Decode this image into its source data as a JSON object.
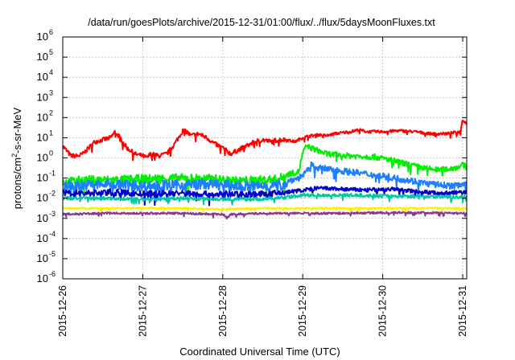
{
  "chart_data": {
    "type": "line",
    "title": "/data/run/goesPlots/archive/2015-12-31/01:00/flux/../flux/5daysMoonFluxes.txt",
    "xlabel": "Coordinated Universal Time (UTC)",
    "ylabel": {
      "base": "protons/cm",
      "sup": "2",
      "rest": "-s-sr-MeV"
    },
    "xlim": [
      0,
      5.05
    ],
    "ylim_log10": [
      -6,
      6
    ],
    "x_ticks": [
      {
        "x": 0,
        "label": "2015-12-26"
      },
      {
        "x": 1,
        "label": "2015-12-27"
      },
      {
        "x": 2,
        "label": "2015-12-28"
      },
      {
        "x": 3,
        "label": "2015-12-29"
      },
      {
        "x": 4,
        "label": "2015-12-30"
      },
      {
        "x": 5,
        "label": "2015-12-31"
      }
    ],
    "y_ticks": [
      {
        "exp": -6,
        "label": "10",
        "sup": "-6"
      },
      {
        "exp": -5,
        "label": "10",
        "sup": "-5"
      },
      {
        "exp": -4,
        "label": "10",
        "sup": "-4"
      },
      {
        "exp": -3,
        "label": "10",
        "sup": "-3"
      },
      {
        "exp": -2,
        "label": "10",
        "sup": "-2"
      },
      {
        "exp": -1,
        "label": "10",
        "sup": "-1"
      },
      {
        "exp": 0,
        "label": "10",
        "sup": "0"
      },
      {
        "exp": 1,
        "label": "10",
        "sup": "1"
      },
      {
        "exp": 2,
        "label": "10",
        "sup": "2"
      },
      {
        "exp": 3,
        "label": "10",
        "sup": "3"
      },
      {
        "exp": 4,
        "label": "10",
        "sup": "4"
      },
      {
        "exp": 5,
        "label": "10",
        "sup": "5"
      },
      {
        "exp": 6,
        "label": "10",
        "sup": "6"
      }
    ],
    "grid": true,
    "legend": "none",
    "series": [
      {
        "color": "#ff0000",
        "noise": 0.07,
        "points": [
          [
            0,
            0.6
          ],
          [
            0.1,
            0.1
          ],
          [
            0.2,
            0.1
          ],
          [
            0.25,
            0.2
          ],
          [
            0.3,
            0.4
          ],
          [
            0.4,
            0.8
          ],
          [
            0.5,
            0.9
          ],
          [
            0.6,
            1.0
          ],
          [
            0.65,
            1.3
          ],
          [
            0.7,
            1.1
          ],
          [
            0.75,
            0.8
          ],
          [
            0.8,
            0.5
          ],
          [
            0.9,
            0.2
          ],
          [
            1.0,
            0.1
          ],
          [
            1.05,
            0.0
          ],
          [
            1.1,
            0.2
          ],
          [
            1.2,
            0.1
          ],
          [
            1.3,
            0.2
          ],
          [
            1.4,
            0.7
          ],
          [
            1.5,
            1.35
          ],
          [
            1.55,
            1.3
          ],
          [
            1.6,
            1.1
          ],
          [
            1.7,
            1.2
          ],
          [
            1.8,
            1.0
          ],
          [
            1.9,
            0.7
          ],
          [
            2.0,
            0.5
          ],
          [
            2.1,
            0.2
          ],
          [
            2.2,
            0.4
          ],
          [
            2.3,
            0.6
          ],
          [
            2.4,
            0.8
          ],
          [
            2.5,
            0.9
          ],
          [
            2.6,
            0.8
          ],
          [
            2.7,
            0.9
          ],
          [
            2.8,
            0.9
          ],
          [
            2.9,
            0.8
          ],
          [
            3.0,
            1.0
          ],
          [
            3.1,
            1.1
          ],
          [
            3.2,
            1.15
          ],
          [
            3.3,
            1.1
          ],
          [
            3.4,
            1.2
          ],
          [
            3.6,
            1.3
          ],
          [
            3.7,
            1.4
          ],
          [
            3.8,
            1.3
          ],
          [
            4.0,
            1.3
          ],
          [
            4.2,
            1.35
          ],
          [
            4.4,
            1.3
          ],
          [
            4.6,
            1.2
          ],
          [
            4.8,
            1.2
          ],
          [
            4.97,
            1.3
          ],
          [
            5.0,
            1.9
          ],
          [
            5.05,
            1.7
          ]
        ]
      },
      {
        "color": "#00ee00",
        "noise": 0.14,
        "points": [
          [
            0,
            -1.2
          ],
          [
            0.3,
            -1.1
          ],
          [
            0.6,
            -1.1
          ],
          [
            1.0,
            -1.05
          ],
          [
            1.5,
            -1.0
          ],
          [
            1.9,
            -1.05
          ],
          [
            2.2,
            -1.15
          ],
          [
            2.5,
            -1.1
          ],
          [
            2.7,
            -1.05
          ],
          [
            2.82,
            -0.8
          ],
          [
            2.95,
            -0.7
          ],
          [
            3.0,
            0.25
          ],
          [
            3.05,
            0.6
          ],
          [
            3.1,
            0.5
          ],
          [
            3.3,
            0.2
          ],
          [
            3.6,
            0.1
          ],
          [
            3.9,
            0.05
          ],
          [
            4.1,
            -0.1
          ],
          [
            4.3,
            -0.3
          ],
          [
            4.5,
            -0.5
          ],
          [
            4.7,
            -0.6
          ],
          [
            4.9,
            -0.5
          ],
          [
            5.0,
            -0.35
          ],
          [
            5.05,
            -0.45
          ]
        ]
      },
      {
        "color": "#1e7fff",
        "noise": 0.16,
        "points": [
          [
            0,
            -1.4
          ],
          [
            0.3,
            -1.35
          ],
          [
            0.6,
            -1.3
          ],
          [
            1.0,
            -1.4
          ],
          [
            1.4,
            -1.35
          ],
          [
            1.8,
            -1.3
          ],
          [
            2.2,
            -1.4
          ],
          [
            2.5,
            -1.4
          ],
          [
            2.75,
            -1.35
          ],
          [
            2.85,
            -1.1
          ],
          [
            2.95,
            -1.0
          ],
          [
            3.05,
            -0.7
          ],
          [
            3.1,
            -0.35
          ],
          [
            3.2,
            -0.5
          ],
          [
            3.4,
            -0.6
          ],
          [
            3.7,
            -0.75
          ],
          [
            4.0,
            -0.9
          ],
          [
            4.3,
            -1.1
          ],
          [
            4.6,
            -1.3
          ],
          [
            4.9,
            -1.4
          ],
          [
            5.05,
            -1.2
          ]
        ]
      },
      {
        "color": "#0000cc",
        "noise": 0.1,
        "points": [
          [
            0,
            -1.75
          ],
          [
            0.3,
            -1.75
          ],
          [
            0.6,
            -1.7
          ],
          [
            1.0,
            -1.8
          ],
          [
            1.4,
            -1.75
          ],
          [
            1.8,
            -1.8
          ],
          [
            2.2,
            -1.8
          ],
          [
            2.6,
            -1.8
          ],
          [
            2.8,
            -1.7
          ],
          [
            3.0,
            -1.6
          ],
          [
            3.2,
            -1.5
          ],
          [
            3.5,
            -1.55
          ],
          [
            3.8,
            -1.6
          ],
          [
            4.1,
            -1.55
          ],
          [
            4.4,
            -1.65
          ],
          [
            4.7,
            -1.75
          ],
          [
            5.05,
            -1.7
          ]
        ]
      },
      {
        "color": "#00c8a0",
        "noise": 0.08,
        "points": [
          [
            0,
            -2.0
          ],
          [
            0.5,
            -2.0
          ],
          [
            1.0,
            -2.05
          ],
          [
            1.5,
            -2.0
          ],
          [
            2.0,
            -2.05
          ],
          [
            2.5,
            -2.05
          ],
          [
            2.8,
            -1.95
          ],
          [
            3.0,
            -1.85
          ],
          [
            3.3,
            -1.85
          ],
          [
            3.7,
            -1.85
          ],
          [
            4.1,
            -1.9
          ],
          [
            4.5,
            -1.9
          ],
          [
            5.05,
            -1.95
          ]
        ]
      },
      {
        "color": "#ffee00",
        "noise": 0.04,
        "points": [
          [
            0,
            -2.5
          ],
          [
            0.5,
            -2.5
          ],
          [
            1.0,
            -2.5
          ],
          [
            1.5,
            -2.5
          ],
          [
            2.0,
            -2.55
          ],
          [
            2.5,
            -2.5
          ],
          [
            3.0,
            -2.5
          ],
          [
            3.5,
            -2.5
          ],
          [
            4.0,
            -2.5
          ],
          [
            4.5,
            -2.5
          ],
          [
            5.05,
            -2.5
          ]
        ]
      },
      {
        "color": "#8b3a8b",
        "noise": 0.05,
        "points": [
          [
            0,
            -2.8
          ],
          [
            0.5,
            -2.75
          ],
          [
            1.0,
            -2.75
          ],
          [
            1.5,
            -2.75
          ],
          [
            2.0,
            -2.8
          ],
          [
            2.05,
            -2.98
          ],
          [
            2.1,
            -2.8
          ],
          [
            2.5,
            -2.75
          ],
          [
            3.0,
            -2.75
          ],
          [
            3.5,
            -2.75
          ],
          [
            4.0,
            -2.72
          ],
          [
            4.5,
            -2.72
          ],
          [
            5.05,
            -2.75
          ]
        ]
      }
    ]
  }
}
